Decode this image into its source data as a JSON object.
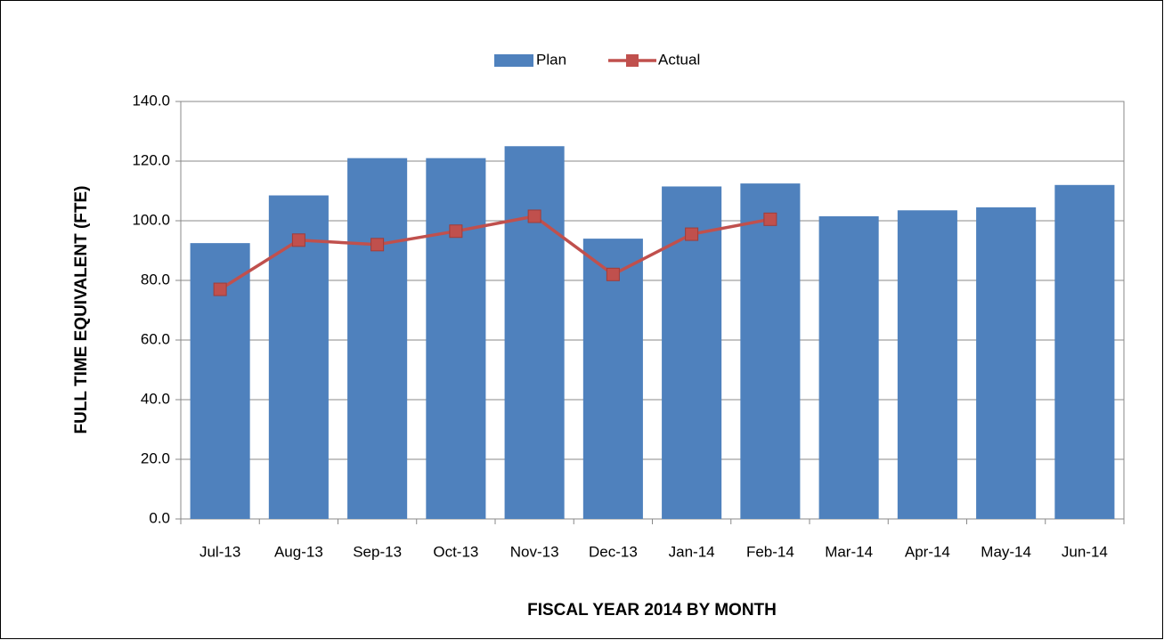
{
  "chart_data": {
    "type": "bar_line",
    "x_label": "FISCAL YEAR 2014 BY MONTH",
    "y_label": "FULL TIME EQUIVALENT (FTE)",
    "categories": [
      "Jul-13",
      "Aug-13",
      "Sep-13",
      "Oct-13",
      "Nov-13",
      "Dec-13",
      "Jan-14",
      "Feb-14",
      "Mar-14",
      "Apr-14",
      "May-14",
      "Jun-14"
    ],
    "series": [
      {
        "name": "Plan",
        "type": "bar",
        "color": "#4f81bd",
        "values": [
          92.5,
          108.5,
          121.0,
          121.0,
          125.0,
          94.0,
          111.5,
          112.5,
          101.5,
          103.5,
          104.5,
          112.0
        ]
      },
      {
        "name": "Actual",
        "type": "line",
        "color": "#c0504d",
        "values": [
          77.0,
          93.5,
          92.0,
          96.5,
          101.5,
          82.0,
          95.5,
          100.5,
          null,
          null,
          null,
          null
        ]
      }
    ],
    "ylim": [
      0,
      140
    ],
    "yticks": [
      {
        "value": 0,
        "label": "0.0"
      },
      {
        "value": 20,
        "label": "20.0"
      },
      {
        "value": 40,
        "label": "40.0"
      },
      {
        "value": 60,
        "label": "60.0"
      },
      {
        "value": 80,
        "label": "80.0"
      },
      {
        "value": 100,
        "label": "100.0"
      },
      {
        "value": 120,
        "label": "120.0"
      },
      {
        "value": 140,
        "label": "140.0"
      }
    ],
    "grid": true,
    "legend": "top"
  }
}
